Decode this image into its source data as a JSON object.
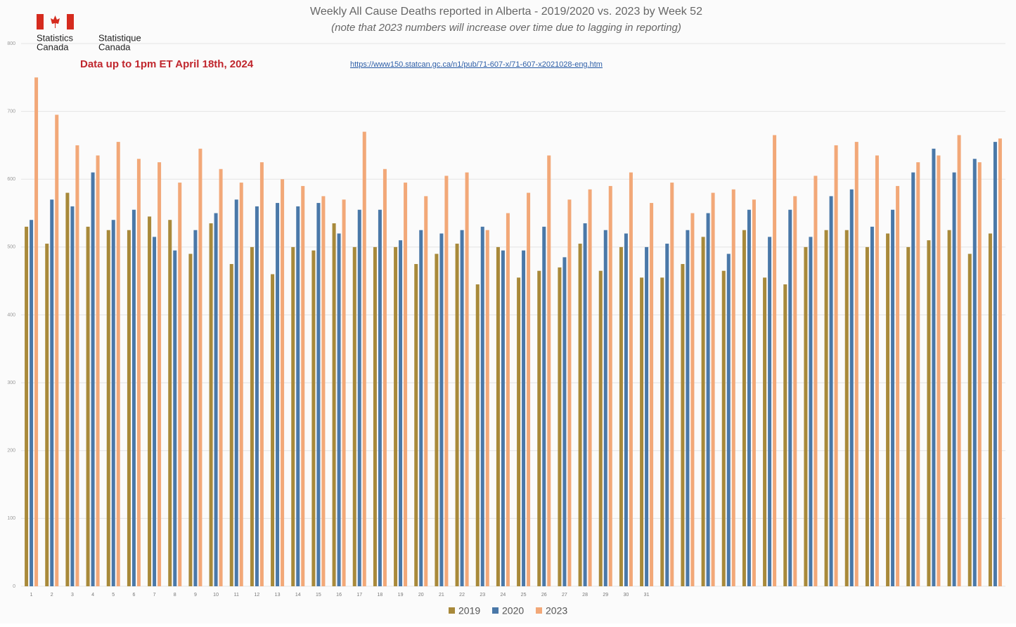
{
  "logo": {
    "english": [
      "Statistics",
      "Canada"
    ],
    "french": [
      "Statistique",
      "Canada"
    ]
  },
  "chart_data": {
    "type": "bar",
    "title": "Weekly All Cause Deaths reported in Alberta - 2019/2020 vs. 2023 by Week 52",
    "subtitle": "(note that 2023 numbers will increase over time due to lagging in reporting)",
    "annotations": [
      "Data up to 1pm ET April 18th, 2024",
      "https://www150.statcan.gc.ca/n1/pub/71-607-x/71-607-x2021028-eng.htm"
    ],
    "categories": [
      "1",
      "2",
      "3",
      "4",
      "5",
      "6",
      "7",
      "8",
      "9",
      "10",
      "11",
      "12",
      "13",
      "14",
      "15",
      "16",
      "17",
      "18",
      "19",
      "20",
      "21",
      "22",
      "23",
      "24",
      "25",
      "26",
      "27",
      "28",
      "29",
      "30",
      "31",
      null,
      null,
      null,
      null,
      null,
      null,
      null,
      null,
      null,
      null,
      null,
      null,
      null,
      null,
      null,
      null,
      null
    ],
    "series": [
      {
        "name": "2019",
        "color": "#a8893a",
        "values": [
          530,
          505,
          580,
          530,
          525,
          525,
          545,
          540,
          490,
          535,
          475,
          500,
          460,
          500,
          495,
          535,
          500,
          500,
          500,
          475,
          490,
          505,
          445,
          500,
          455,
          465,
          470,
          505,
          465,
          500,
          455,
          455,
          475,
          515,
          465,
          525,
          455,
          445,
          500,
          525,
          525,
          500,
          520,
          500,
          510,
          525,
          490,
          520
        ]
      },
      {
        "name": "2020",
        "color": "#4a78a8",
        "values": [
          540,
          570,
          560,
          610,
          540,
          555,
          515,
          495,
          525,
          550,
          570,
          560,
          565,
          560,
          565,
          520,
          555,
          555,
          510,
          525,
          520,
          525,
          530,
          495,
          495,
          530,
          485,
          535,
          525,
          520,
          500,
          505,
          525,
          550,
          490,
          555,
          515,
          555,
          515,
          575,
          585,
          530,
          555,
          610,
          645,
          610,
          630,
          655
        ]
      },
      {
        "name": "2023",
        "color": "#f2a878",
        "values": [
          750,
          695,
          650,
          635,
          655,
          630,
          625,
          595,
          645,
          615,
          595,
          625,
          600,
          590,
          575,
          570,
          670,
          615,
          595,
          575,
          605,
          610,
          525,
          550,
          580,
          635,
          570,
          585,
          590,
          610,
          565,
          595,
          550,
          580,
          585,
          570,
          665,
          575,
          605,
          650,
          655,
          635,
          590,
          625,
          635,
          665,
          625,
          660
        ]
      }
    ],
    "ylim": [
      0,
      800
    ],
    "yticks": [
      0,
      100,
      200,
      300,
      400,
      500,
      600,
      700,
      800
    ],
    "grid": true,
    "legend": "bottom"
  }
}
